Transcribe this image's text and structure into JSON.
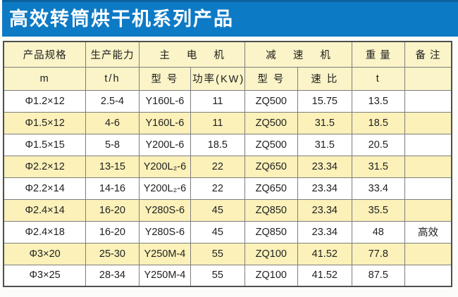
{
  "banner": {
    "title": "高效转筒烘干机系列产品"
  },
  "colors": {
    "banner_blue": "#0d7ac5",
    "banner_top_edge": "#0a629f",
    "header_cream": "#faf4c8",
    "alt_row_yellow": "#fbf1b9",
    "grid_border": "#7d7d7d",
    "title_text": "#ffffff"
  },
  "table": {
    "h1": {
      "spec": "产品规格",
      "capacity": "生产能力",
      "motor": "主 电 机",
      "reducer": "减 速 机",
      "weight": "重 量",
      "remark": "备 注"
    },
    "h2": {
      "spec_unit": "m",
      "capacity_unit": "t/h",
      "motor_model": "型 号",
      "motor_power": "功率(KW)",
      "reducer_model": "型 号",
      "reducer_ratio": "速 比",
      "weight_unit": "t",
      "remark": ""
    },
    "columns": [
      "spec",
      "capacity",
      "motor-model",
      "motor-power",
      "reducer-model",
      "reducer-ratio",
      "weight",
      "remark"
    ],
    "rows": [
      [
        "Φ1.2×12",
        "2.5-4",
        "Y160L-6",
        "11",
        "ZQ500",
        "15.75",
        "13.5",
        ""
      ],
      [
        "Φ1.5×12",
        "4-6",
        "Y160L-6",
        "11",
        "ZQ500",
        "31.5",
        "18.5",
        ""
      ],
      [
        "Φ1.5×15",
        "5-8",
        "Y200L-6",
        "18.5",
        "ZQ500",
        "31.5",
        "20.5",
        ""
      ],
      [
        "Φ2.2×12",
        "13-15",
        "Y200L₂-6",
        "22",
        "ZQ650",
        "23.34",
        "31.5",
        ""
      ],
      [
        "Φ2.2×14",
        "14-16",
        "Y200L₂-6",
        "22",
        "ZQ650",
        "23.34",
        "33.4",
        ""
      ],
      [
        "Φ2.4×14",
        "16-20",
        "Y280S-6",
        "45",
        "ZQ850",
        "23.34",
        "35.5",
        ""
      ],
      [
        "Φ2.4×18",
        "16-20",
        "Y280S-6",
        "45",
        "ZQ850",
        "23.34",
        "48",
        "高效"
      ],
      [
        "Φ3×20",
        "25-30",
        "Y250M-4",
        "55",
        "ZQ100",
        "41.52",
        "77.8",
        ""
      ],
      [
        "Φ3×25",
        "28-34",
        "Y250M-4",
        "55",
        "ZQ100",
        "41.52",
        "87.5",
        ""
      ]
    ]
  }
}
